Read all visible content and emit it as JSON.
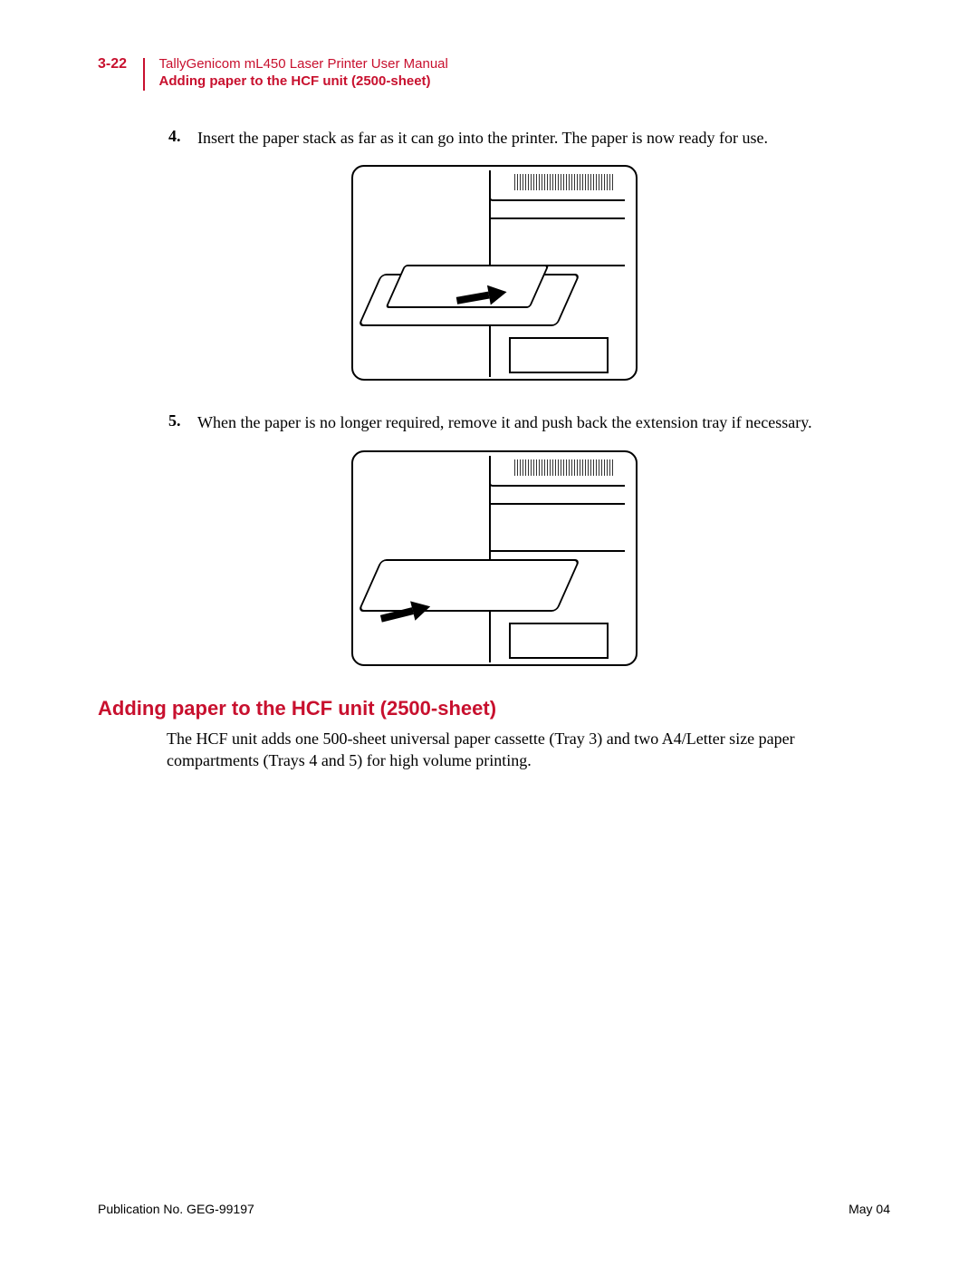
{
  "colors": {
    "accent": "#c8102e",
    "text": "#000000",
    "background": "#ffffff"
  },
  "header": {
    "page_number": "3-22",
    "manual_title": "TallyGenicom mL450 Laser Printer User Manual",
    "section_title": "Adding paper to the HCF unit (2500-sheet)"
  },
  "steps": [
    {
      "number": "4.",
      "text": "Insert the paper stack as far as it can go into the printer. The paper is now ready for use."
    },
    {
      "number": "5.",
      "text": "When the paper is no longer required, remove it and push back the extension tray if necessary."
    }
  ],
  "section": {
    "heading": "Adding paper to the HCF unit (2500-sheet)",
    "body": "The HCF unit adds one 500-sheet universal paper cassette (Tray 3) and two A4/Letter size paper compartments (Trays 4 and 5) for high volume printing."
  },
  "figures": [
    {
      "description": "Printer with extension tray extended; arrow shows inserting paper stack into tray toward printer."
    },
    {
      "description": "Printer with extension tray; arrow shows pushing tray back into printer body."
    }
  ],
  "footer": {
    "publication": "Publication No. GEG-99197",
    "date": "May 04"
  },
  "typography": {
    "header_font": "Arial",
    "body_font": "Georgia",
    "page_number_fontsize_pt": 12,
    "header_fontsize_pt": 11,
    "step_fontsize_pt": 13,
    "heading_fontsize_pt": 16,
    "footer_fontsize_pt": 10
  }
}
